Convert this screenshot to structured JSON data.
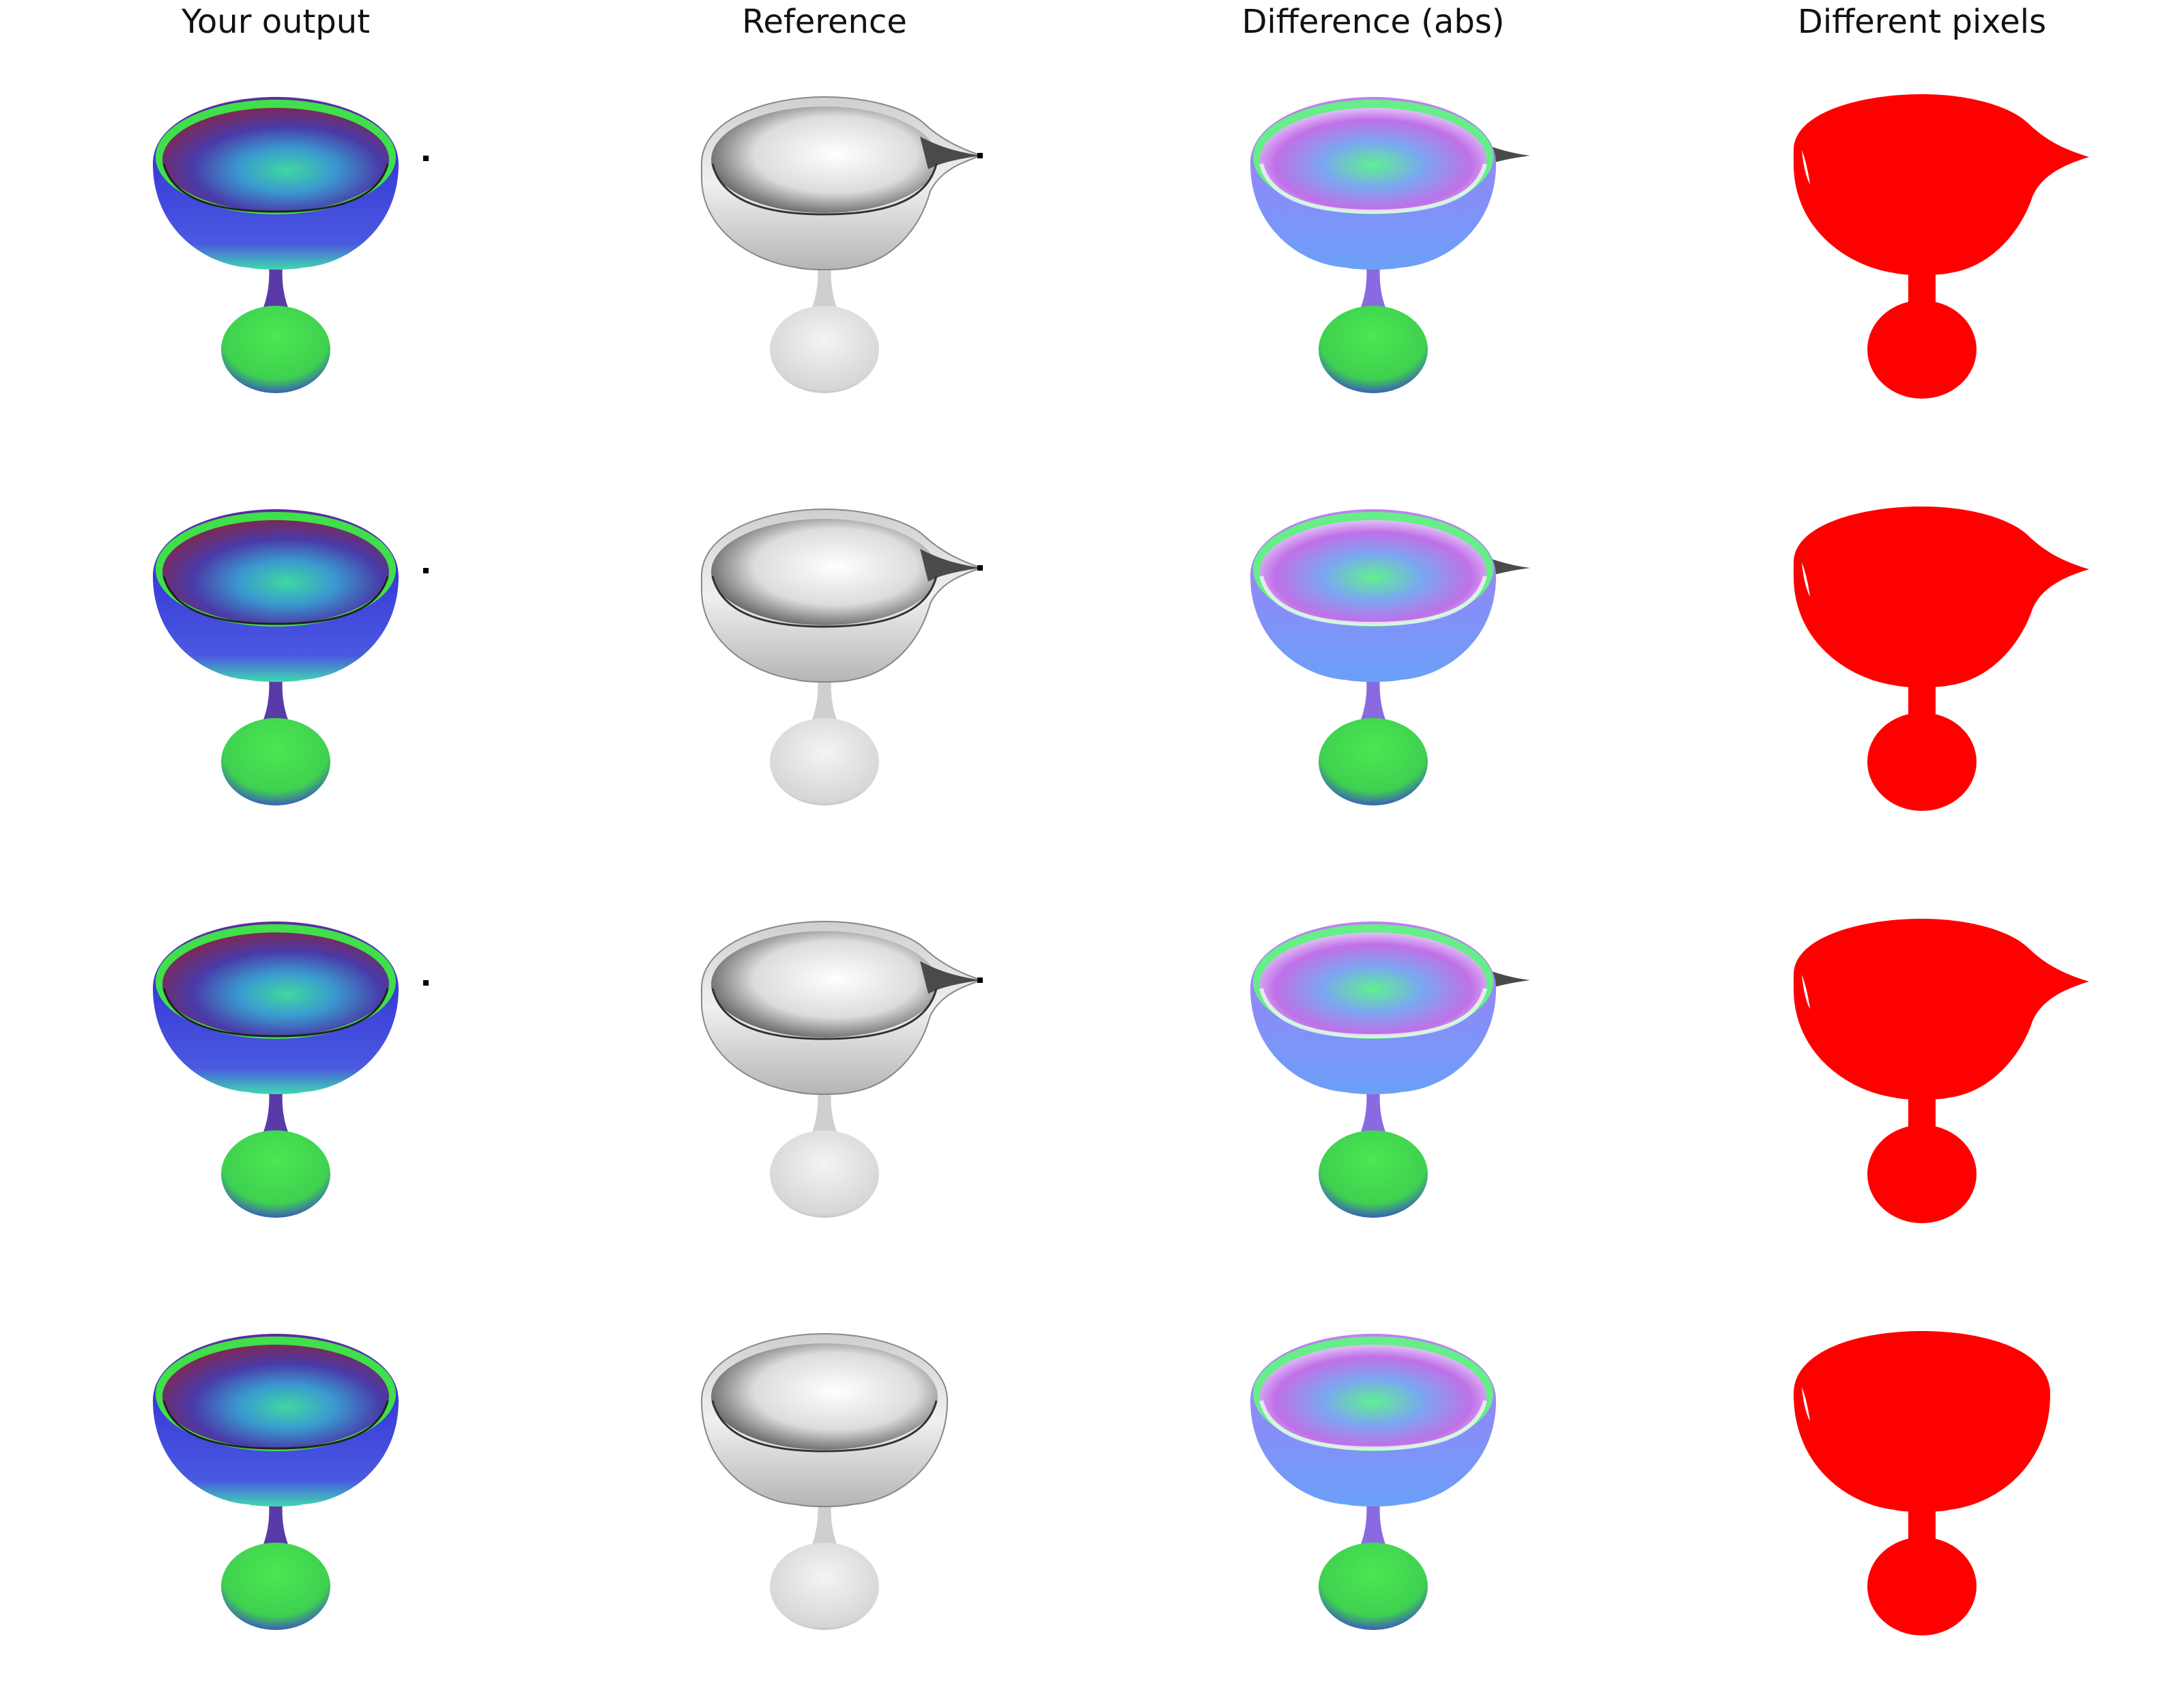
{
  "columns": [
    {
      "title": "Your output",
      "kind": "output"
    },
    {
      "title": "Reference",
      "kind": "reference"
    },
    {
      "title": "Difference (abs)",
      "kind": "difference"
    },
    {
      "title": "Different pixels",
      "kind": "mask"
    }
  ],
  "rows": [
    {
      "reference_has_spout": true,
      "output_has_marker": true
    },
    {
      "reference_has_spout": true,
      "output_has_marker": true
    },
    {
      "reference_has_spout": true,
      "output_has_marker": true
    },
    {
      "reference_has_spout": false,
      "output_has_marker": false
    }
  ],
  "colors": {
    "mask": "#ff0000",
    "background": "#ffffff",
    "normal_green": "#3fe04a",
    "normal_blue": "#3a3cd8",
    "normal_purple": "#5a2d8c",
    "normal_cyan": "#38d8b0",
    "grey_light": "#f2f2f2",
    "grey_mid": "#bdbdbd",
    "grey_dark": "#6b6b6b"
  }
}
